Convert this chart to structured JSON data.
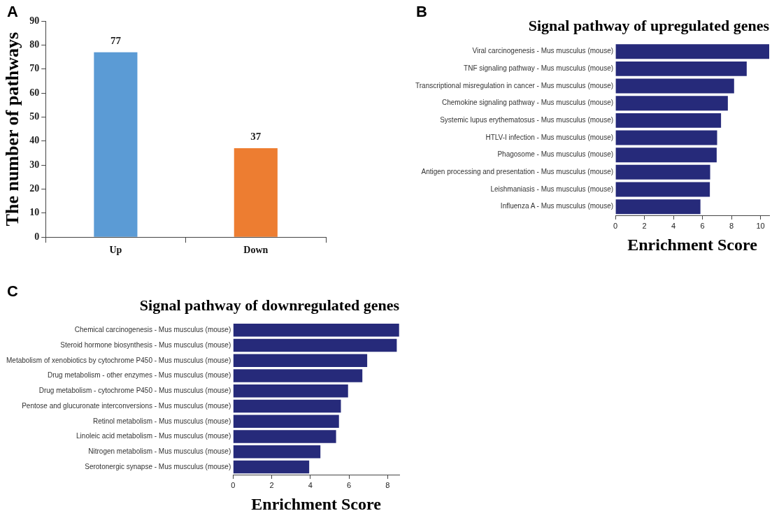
{
  "chart_data": [
    {
      "type": "bar",
      "annotations": [
        "A"
      ],
      "ylabel": "The number of pathways",
      "categories": [
        "Up",
        "Down"
      ],
      "values": [
        77,
        37
      ],
      "colors": [
        "#5b9bd5",
        "#ed7d31"
      ],
      "ylim": [
        0,
        90
      ],
      "yticks": [
        0,
        10,
        20,
        30,
        40,
        50,
        60,
        70,
        80,
        90
      ],
      "data_labels": true
    },
    {
      "type": "bar",
      "annotations": [
        "B"
      ],
      "title": "Signal pathway of upregulated genes",
      "xlabel": "Enrichment Score",
      "orientation": "horizontal",
      "categories": [
        "Viral carcinogenesis - Mus musculus (mouse)",
        "TNF signaling pathway - Mus musculus (mouse)",
        "Transcriptional misregulation in cancer - Mus musculus (mouse)",
        "Chemokine signaling pathway - Mus musculus (mouse)",
        "Systemic lupus erythematosus - Mus musculus (mouse)",
        "HTLV-I infection - Mus musculus (mouse)",
        "Phagosome - Mus musculus (mouse)",
        "Antigen processing and presentation - Mus musculus (mouse)",
        "Leishmaniasis - Mus musculus (mouse)",
        "Influenza A - Mus musculus (mouse)"
      ],
      "values": [
        10.6,
        9.05,
        8.18,
        7.75,
        7.28,
        7.01,
        6.98,
        6.53,
        6.51,
        5.86
      ],
      "color": "#262a7a",
      "xlim": [
        0,
        10.6
      ],
      "xticks": [
        0,
        2,
        4,
        6,
        8,
        10
      ]
    },
    {
      "type": "bar",
      "annotations": [
        "C"
      ],
      "title": "Signal pathway of downregulated genes",
      "xlabel": "Enrichment Score",
      "orientation": "horizontal",
      "categories": [
        "Chemical carcinogenesis - Mus musculus (mouse)",
        "Steroid hormone biosynthesis - Mus musculus (mouse)",
        "Metabolism of xenobiotics by cytochrome P450 - Mus musculus (mouse)",
        "Drug metabolism - other enzymes - Mus musculus (mouse)",
        "Drug metabolism - cytochrome P450 - Mus musculus (mouse)",
        "Pentose and glucuronate interconversions - Mus musculus (mouse)",
        "Retinol metabolism - Mus musculus (mouse)",
        "Linoleic acid metabolism - Mus musculus (mouse)",
        "Nitrogen metabolism - Mus musculus (mouse)",
        "Serotonergic synapse - Mus musculus (mouse)"
      ],
      "values": [
        8.59,
        8.47,
        6.94,
        6.69,
        5.95,
        5.58,
        5.48,
        5.33,
        4.52,
        3.94
      ],
      "color": "#262a7a",
      "xlim": [
        0,
        8.6
      ],
      "xticks": [
        0,
        2,
        4,
        6,
        8
      ]
    }
  ]
}
